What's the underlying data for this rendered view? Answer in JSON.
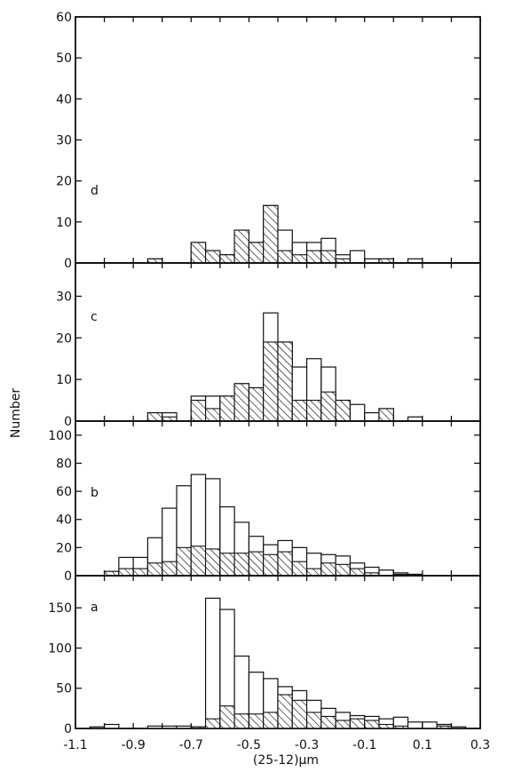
{
  "chart_data": {
    "type": "bar",
    "ylabel": "Number",
    "xlabel": "(25-12)µm",
    "x_tick_labels": [
      "-1.1",
      "-0.9",
      "-0.7",
      "-0.5",
      "-0.3",
      "-0.1",
      "0.1",
      "0.3"
    ],
    "xlim": [
      -1.1,
      0.3
    ],
    "bin_width": 0.05,
    "bin_starts": [
      -1.05,
      -1.0,
      -0.95,
      -0.9,
      -0.85,
      -0.8,
      -0.75,
      -0.7,
      -0.65,
      -0.6,
      -0.55,
      -0.5,
      -0.45,
      -0.4,
      -0.35,
      -0.3,
      -0.25,
      -0.2,
      -0.15,
      -0.1,
      -0.05,
      0.0,
      0.05,
      0.1,
      0.15,
      0.2
    ],
    "panels": [
      {
        "label": "d",
        "ylim": [
          0,
          60
        ],
        "y_tick_labels": [
          "0",
          "10",
          "20",
          "30",
          "40",
          "50",
          "60"
        ],
        "series": [
          {
            "name": "all",
            "values": [
              0,
              0,
              0,
              0,
              1,
              0,
              0,
              5,
              3,
              2,
              8,
              5,
              14,
              8,
              5,
              5,
              6,
              2,
              3,
              1,
              1,
              0,
              1,
              0,
              0,
              0
            ]
          },
          {
            "name": "hatched",
            "values": [
              0,
              0,
              0,
              0,
              1,
              0,
              0,
              5,
              3,
              2,
              8,
              5,
              14,
              3,
              2,
              3,
              3,
              1,
              0,
              0,
              1,
              0,
              0,
              0,
              0,
              0
            ]
          }
        ]
      },
      {
        "label": "c",
        "ylim": [
          0,
          38
        ],
        "y_tick_labels": [
          "0",
          "10",
          "20",
          "30"
        ],
        "series": [
          {
            "name": "all",
            "values": [
              0,
              0,
              0,
              0,
              2,
              2,
              0,
              6,
              6,
              6,
              9,
              8,
              26,
              19,
              13,
              15,
              13,
              5,
              4,
              2,
              3,
              0,
              1,
              0,
              0,
              0
            ]
          },
          {
            "name": "hatched",
            "values": [
              0,
              0,
              0,
              0,
              2,
              1,
              0,
              5,
              3,
              6,
              9,
              8,
              19,
              19,
              5,
              5,
              7,
              5,
              0,
              0,
              3,
              0,
              0,
              0,
              0,
              0
            ]
          }
        ]
      },
      {
        "label": "b",
        "ylim": [
          0,
          110
        ],
        "y_tick_labels": [
          "0",
          "20",
          "40",
          "60",
          "80",
          "100"
        ],
        "series": [
          {
            "name": "all",
            "values": [
              0,
              3,
              13,
              13,
              27,
              48,
              64,
              72,
              69,
              49,
              38,
              28,
              22,
              25,
              20,
              16,
              15,
              14,
              9,
              6,
              4,
              2,
              1,
              0,
              0,
              0
            ]
          },
          {
            "name": "hatched",
            "values": [
              0,
              3,
              5,
              5,
              9,
              10,
              20,
              21,
              19,
              16,
              16,
              17,
              15,
              17,
              10,
              5,
              9,
              8,
              5,
              2,
              0,
              1,
              0,
              0,
              0,
              0
            ]
          }
        ]
      },
      {
        "label": "a",
        "ylim": [
          0,
          190
        ],
        "y_tick_labels": [
          "0",
          "50",
          "100",
          "150"
        ],
        "series": [
          {
            "name": "all",
            "values": [
              2,
              5,
              0,
              0,
              3,
              3,
              3,
              2,
              162,
              148,
              90,
              70,
              62,
              52,
              47,
              35,
              25,
              20,
              16,
              15,
              12,
              14,
              8,
              8,
              5,
              2
            ]
          },
          {
            "name": "hatched",
            "values": [
              0,
              0,
              0,
              0,
              0,
              0,
              0,
              2,
              12,
              28,
              18,
              18,
              20,
              42,
              35,
              20,
              15,
              10,
              12,
              10,
              5,
              3,
              0,
              0,
              3,
              0
            ]
          }
        ]
      }
    ]
  }
}
